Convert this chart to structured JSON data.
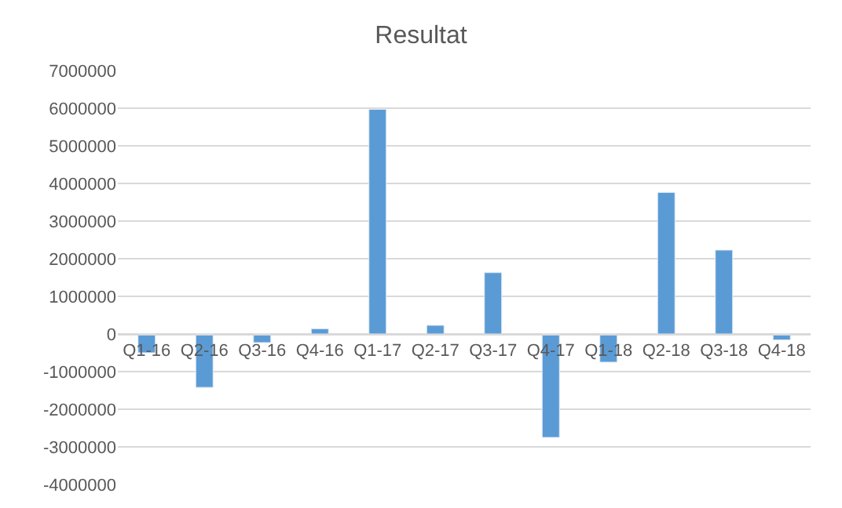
{
  "chart_data": {
    "type": "bar",
    "title": "Resultat",
    "categories": [
      "Q1-16",
      "Q2-16",
      "Q3-16",
      "Q4-16",
      "Q1-17",
      "Q2-17",
      "Q3-17",
      "Q4-17",
      "Q1-18",
      "Q2-18",
      "Q3-18",
      "Q4-18"
    ],
    "values": [
      -500000,
      -1420000,
      -230000,
      140000,
      5970000,
      230000,
      1630000,
      -2750000,
      -750000,
      3760000,
      2230000,
      -160000
    ],
    "color": "#5b9bd5",
    "ylim": [
      -4000000,
      7000000
    ],
    "yticks": [
      -4000000,
      -3000000,
      -2000000,
      -1000000,
      0,
      1000000,
      2000000,
      3000000,
      4000000,
      5000000,
      6000000,
      7000000
    ],
    "grid": "y"
  }
}
